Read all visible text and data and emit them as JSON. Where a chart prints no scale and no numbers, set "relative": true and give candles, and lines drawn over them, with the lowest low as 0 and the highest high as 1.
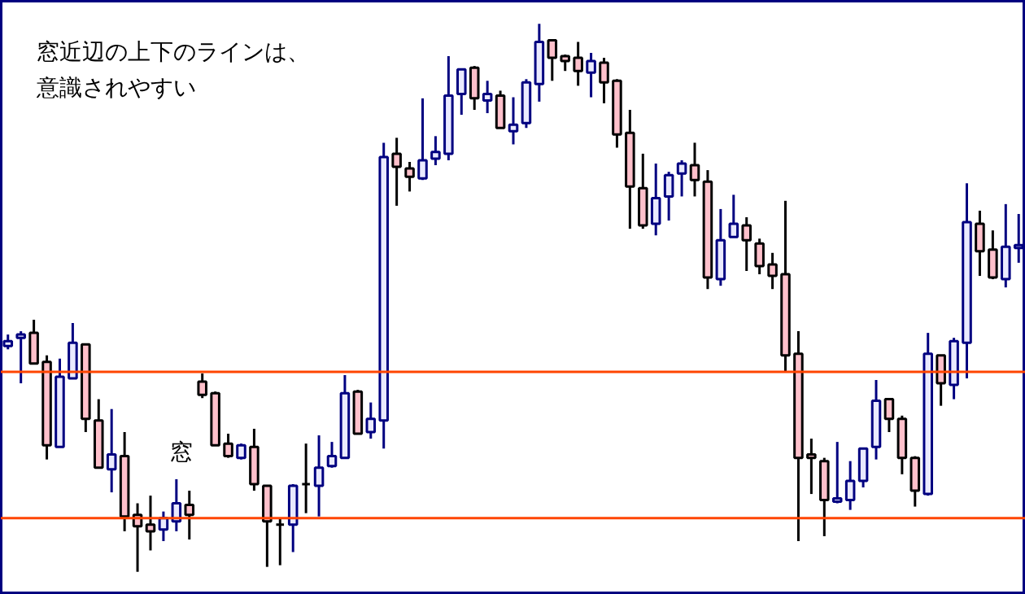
{
  "chart_data": {
    "type": "candlestick",
    "relative": true,
    "title": "窓近辺の上下のラインは、",
    "subtitle": "意識されやすい",
    "annotations": [
      "窓"
    ],
    "categories": [
      null,
      null,
      null,
      null,
      null,
      null,
      null,
      null,
      null,
      null,
      null,
      null,
      null,
      null,
      null,
      null,
      null,
      null,
      null,
      null,
      null,
      null,
      null,
      null,
      null,
      null,
      null,
      null,
      null,
      null,
      null,
      null,
      null,
      null,
      null,
      null,
      null,
      null,
      null,
      null,
      null,
      null,
      null,
      null,
      null,
      null,
      null,
      null,
      null,
      null,
      null,
      null,
      null,
      null,
      null,
      null,
      null,
      null,
      null,
      null,
      null,
      null,
      null,
      null,
      null,
      null,
      null,
      null,
      null,
      null,
      null,
      null,
      null,
      null,
      null,
      null,
      null,
      null,
      null
    ],
    "ohlc": [
      [
        0.412,
        0.433,
        0.406,
        0.421
      ],
      [
        0.427,
        0.439,
        0.344,
        0.433
      ],
      [
        0.436,
        0.46,
        0.38,
        0.38
      ],
      [
        0.383,
        0.395,
        0.205,
        0.231
      ],
      [
        0.228,
        0.389,
        0.228,
        0.356
      ],
      [
        0.353,
        0.454,
        0.353,
        0.418
      ],
      [
        0.415,
        0.415,
        0.255,
        0.279
      ],
      [
        0.276,
        0.315,
        0.19,
        0.19
      ],
      [
        0.187,
        0.297,
        0.145,
        0.214
      ],
      [
        0.211,
        0.255,
        0.074,
        0.101
      ],
      [
        0.104,
        0.125,
        0.0,
        0.083
      ],
      [
        0.086,
        0.139,
        0.039,
        0.074
      ],
      [
        0.077,
        0.11,
        0.056,
        0.098
      ],
      [
        0.092,
        0.169,
        0.074,
        0.125
      ],
      [
        0.122,
        0.148,
        0.059,
        0.104
      ],
      [
        0.347,
        0.362,
        0.317,
        0.323
      ],
      [
        0.326,
        0.329,
        0.231,
        0.231
      ],
      [
        0.234,
        0.252,
        0.208,
        0.211
      ],
      [
        0.208,
        0.234,
        0.205,
        0.231
      ],
      [
        0.228,
        0.261,
        0.148,
        0.16
      ],
      [
        0.157,
        0.157,
        0.009,
        0.092
      ],
      [
        0.086,
        0.098,
        0.012,
        0.086
      ],
      [
        0.086,
        0.16,
        0.036,
        0.157
      ],
      [
        0.16,
        0.234,
        0.107,
        0.16
      ],
      [
        0.157,
        0.249,
        0.101,
        0.19
      ],
      [
        0.193,
        0.237,
        0.19,
        0.211
      ],
      [
        0.208,
        0.359,
        0.208,
        0.326
      ],
      [
        0.329,
        0.332,
        0.252,
        0.252
      ],
      [
        0.255,
        0.309,
        0.243,
        0.279
      ],
      [
        0.276,
        0.783,
        0.225,
        0.757
      ],
      [
        0.763,
        0.792,
        0.668,
        0.739
      ],
      [
        0.736,
        0.748,
        0.694,
        0.721
      ],
      [
        0.718,
        0.864,
        0.715,
        0.751
      ],
      [
        0.754,
        0.795,
        0.742,
        0.766
      ],
      [
        0.763,
        0.941,
        0.751,
        0.869
      ],
      [
        0.872,
        0.917,
        0.834,
        0.917
      ],
      [
        0.92,
        0.923,
        0.843,
        0.864
      ],
      [
        0.86,
        0.896,
        0.837,
        0.872
      ],
      [
        0.869,
        0.878,
        0.81,
        0.81
      ],
      [
        0.804,
        0.866,
        0.78,
        0.816
      ],
      [
        0.819,
        0.899,
        0.81,
        0.893
      ],
      [
        0.89,
        1.0,
        0.858,
        0.967
      ],
      [
        0.97,
        0.97,
        0.896,
        0.938
      ],
      [
        0.941,
        0.944,
        0.914,
        0.932
      ],
      [
        0.938,
        0.967,
        0.887,
        0.914
      ],
      [
        0.911,
        0.947,
        0.866,
        0.932
      ],
      [
        0.929,
        0.938,
        0.855,
        0.893
      ],
      [
        0.896,
        0.899,
        0.774,
        0.798
      ],
      [
        0.801,
        0.843,
        0.626,
        0.703
      ],
      [
        0.7,
        0.763,
        0.626,
        0.632
      ],
      [
        0.635,
        0.745,
        0.614,
        0.682
      ],
      [
        0.685,
        0.73,
        0.641,
        0.724
      ],
      [
        0.727,
        0.751,
        0.685,
        0.745
      ],
      [
        0.742,
        0.783,
        0.685,
        0.715
      ],
      [
        0.712,
        0.733,
        0.516,
        0.537
      ],
      [
        0.534,
        0.662,
        0.522,
        0.605
      ],
      [
        0.611,
        0.688,
        0.611,
        0.635
      ],
      [
        0.632,
        0.647,
        0.549,
        0.605
      ],
      [
        0.599,
        0.608,
        0.543,
        0.558
      ],
      [
        0.561,
        0.582,
        0.516,
        0.54
      ],
      [
        0.543,
        0.677,
        0.365,
        0.395
      ],
      [
        0.398,
        0.439,
        0.056,
        0.208
      ],
      [
        0.214,
        0.243,
        0.142,
        0.208
      ],
      [
        0.202,
        0.208,
        0.065,
        0.131
      ],
      [
        0.128,
        0.237,
        0.125,
        0.134
      ],
      [
        0.131,
        0.202,
        0.113,
        0.166
      ],
      [
        0.166,
        0.225,
        0.154,
        0.225
      ],
      [
        0.228,
        0.35,
        0.205,
        0.312
      ],
      [
        0.315,
        0.315,
        0.255,
        0.279
      ],
      [
        0.279,
        0.285,
        0.178,
        0.208
      ],
      [
        0.208,
        0.211,
        0.119,
        0.148
      ],
      [
        0.142,
        0.436,
        0.139,
        0.398
      ],
      [
        0.395,
        0.395,
        0.303,
        0.344
      ],
      [
        0.341,
        0.427,
        0.315,
        0.421
      ],
      [
        0.418,
        0.709,
        0.353,
        0.638
      ],
      [
        0.635,
        0.659,
        0.54,
        0.585
      ],
      [
        0.588,
        0.623,
        0.534,
        0.537
      ],
      [
        0.534,
        0.671,
        0.519,
        0.593
      ],
      [
        0.591,
        0.653,
        0.564,
        0.596
      ]
    ],
    "ref_lines": [
      {
        "axis": "y",
        "value": 0.365,
        "color": "#ff4500"
      },
      {
        "axis": "y",
        "value": 0.098,
        "color": "#ff4500"
      }
    ]
  }
}
